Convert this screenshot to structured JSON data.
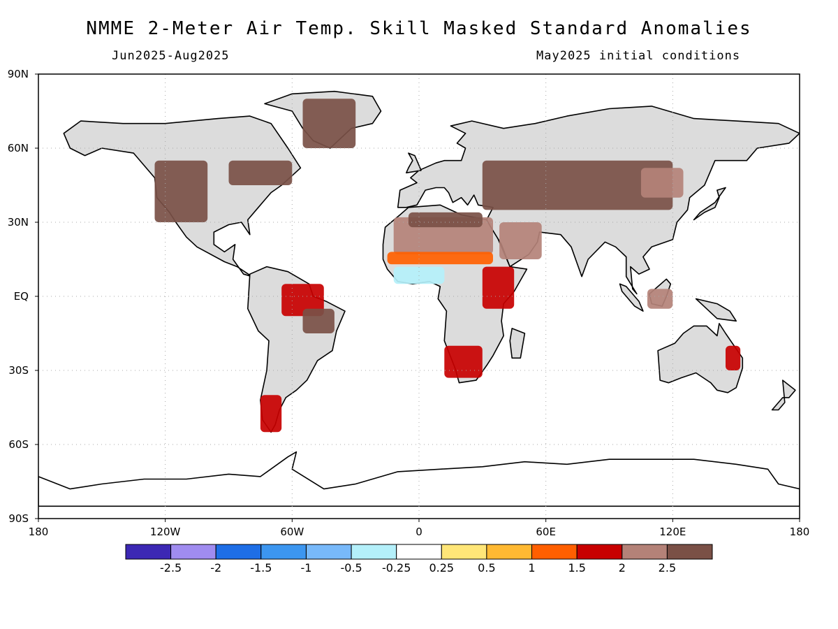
{
  "title": "NMME 2-Meter Air Temp. Skill Masked Standard Anomalies",
  "subtitle_left": "Jun2025-Aug2025",
  "subtitle_right": "May2025 initial conditions",
  "colors": {
    "land_no_skill": "#dcdcdc",
    "ocean": "#ffffff",
    "coast": "#000000",
    "grid": "#a8a8a8"
  },
  "chart_data": {
    "type": "heatmap",
    "projection": "equirectangular",
    "lon_range": [
      -180,
      180
    ],
    "lat_range": [
      -90,
      90
    ],
    "x_ticks": [
      "180",
      "120W",
      "60W",
      "0",
      "60E",
      "120E",
      "180"
    ],
    "y_ticks": [
      "90N",
      "60N",
      "30N",
      "EQ",
      "30S",
      "60S",
      "90S"
    ],
    "colorbar": {
      "labels": [
        "-2.5",
        "-2",
        "-1.5",
        "-1",
        "-0.5",
        "-0.25",
        "0.25",
        "0.5",
        "1",
        "1.5",
        "2",
        "2.5"
      ],
      "colors": [
        "#3c28b4",
        "#a08cf0",
        "#1e6ee6",
        "#3c96f0",
        "#78b9fa",
        "#b4f0fa",
        "#ffffff",
        "#ffe678",
        "#ffb932",
        "#ff5f00",
        "#c80000",
        "#b48278",
        "#7a5046"
      ]
    },
    "anomaly_regions": [
      {
        "name": "Saharan belt",
        "category": "2",
        "lon": [
          -12,
          35
        ],
        "lat": [
          17,
          32
        ]
      },
      {
        "name": "Arabian Peninsula",
        "category": "2",
        "lon": [
          38,
          58
        ],
        "lat": [
          15,
          30
        ]
      },
      {
        "name": "Northern Sahara",
        "category": "2.5",
        "lon": [
          -5,
          30
        ],
        "lat": [
          28,
          34
        ]
      },
      {
        "name": "Sahel",
        "category": "1",
        "lon": [
          -15,
          35
        ],
        "lat": [
          13,
          18
        ]
      },
      {
        "name": "Gulf of Guinea coast",
        "category": "-0.5",
        "lon": [
          -12,
          12
        ],
        "lat": [
          5,
          12
        ]
      },
      {
        "name": "East Africa",
        "category": "1.5",
        "lon": [
          30,
          45
        ],
        "lat": [
          -5,
          12
        ]
      },
      {
        "name": "Southern Africa",
        "category": "1.5",
        "lon": [
          12,
          30
        ],
        "lat": [
          -33,
          -20
        ]
      },
      {
        "name": "Central Asia",
        "category": "2.5",
        "lon": [
          30,
          120
        ],
        "lat": [
          35,
          55
        ]
      },
      {
        "name": "Mongolia / North China",
        "category": "2",
        "lon": [
          105,
          125
        ],
        "lat": [
          40,
          52
        ]
      },
      {
        "name": "Western North America",
        "category": "2.5",
        "lon": [
          -125,
          -100
        ],
        "lat": [
          30,
          55
        ]
      },
      {
        "name": "Eastern Canada",
        "category": "2.5",
        "lon": [
          -90,
          -60
        ],
        "lat": [
          45,
          55
        ]
      },
      {
        "name": "Northern Brazil",
        "category": "1.5",
        "lon": [
          -65,
          -45
        ],
        "lat": [
          -8,
          5
        ]
      },
      {
        "name": "Central Brazil",
        "category": "2.5",
        "lon": [
          -55,
          -40
        ],
        "lat": [
          -15,
          -5
        ]
      },
      {
        "name": "Patagonia",
        "category": "1.5",
        "lon": [
          -75,
          -65
        ],
        "lat": [
          -55,
          -40
        ]
      },
      {
        "name": "Eastern Australia",
        "category": "1.5",
        "lon": [
          145,
          152
        ],
        "lat": [
          -30,
          -20
        ]
      },
      {
        "name": "Indonesia",
        "category": "2",
        "lon": [
          108,
          120
        ],
        "lat": [
          -5,
          3
        ]
      },
      {
        "name": "Greenland south",
        "category": "2.5",
        "lon": [
          -55,
          -30
        ],
        "lat": [
          60,
          80
        ]
      }
    ]
  }
}
